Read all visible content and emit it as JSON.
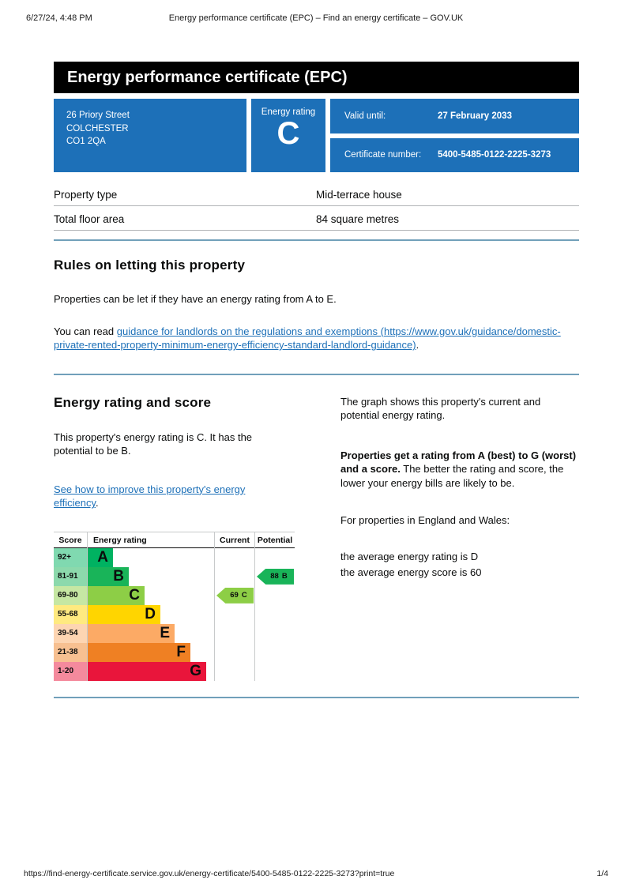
{
  "print_header": {
    "datetime": "6/27/24, 4:48 PM",
    "title": "Energy performance certificate (EPC) – Find an energy certificate – GOV.UK"
  },
  "print_footer": {
    "url": "https://find-energy-certificate.service.gov.uk/energy-certificate/5400-5485-0122-2225-3273?print=true",
    "page": "1/4"
  },
  "banner": {
    "title": "Energy performance certificate (EPC)"
  },
  "summary": {
    "address_lines": [
      "26 Priory Street",
      "COLCHESTER",
      "CO1 2QA"
    ],
    "rating_label": "Energy rating",
    "rating_value": "C",
    "valid_until_label": "Valid until:",
    "valid_until_value": "27 February 2033",
    "certificate_number_label": "Certificate number:",
    "certificate_number_value": "5400-5485-0122-2225-3273"
  },
  "property_facts": {
    "rows": [
      {
        "label": "Property type",
        "value": "Mid-terrace house"
      },
      {
        "label": "Total floor area",
        "value": "84 square metres"
      }
    ]
  },
  "rules_section": {
    "heading": "Rules on letting this property",
    "para1": "Properties can be let if they have an energy rating from A to E.",
    "para2_prefix": "You can read ",
    "para2_link": "guidance for landlords on the regulations and exemptions (https://www.gov.uk/guidance/domestic-private-rented-property-minimum-energy-efficiency-standard-landlord-guidance)",
    "para2_suffix": "."
  },
  "rating_section": {
    "heading": "Energy rating and score",
    "para1": "This property's energy rating is C. It has the potential to be B.",
    "link": "See how to improve this property's energy efficiency",
    "link_suffix": ".",
    "right_para1": "The graph shows this property's current and potential energy rating.",
    "right_para2_bold": "Properties get a rating from A (best) to G (worst) and a score.",
    "right_para2_rest": " The better the rating and score, the lower your energy bills are likely to be.",
    "right_para3": "For properties in England and Wales:",
    "right_list": [
      "the average energy rating is D",
      "the average energy score is 60"
    ]
  },
  "chart_data": {
    "type": "epc-rating-bands",
    "headers": {
      "score": "Score",
      "rating": "Energy rating",
      "current": "Current",
      "potential": "Potential"
    },
    "bands": [
      {
        "score": "92+",
        "letter": "A",
        "color": "#00b261",
        "tint": "#80d9b0",
        "width_pct": 20
      },
      {
        "score": "81-91",
        "letter": "B",
        "color": "#19b459",
        "tint": "#8cd9ac",
        "width_pct": 32.5
      },
      {
        "score": "69-80",
        "letter": "C",
        "color": "#8dce46",
        "tint": "#c6e7a3",
        "width_pct": 45
      },
      {
        "score": "55-68",
        "letter": "D",
        "color": "#ffd500",
        "tint": "#ffea80",
        "width_pct": 57.5
      },
      {
        "score": "39-54",
        "letter": "E",
        "color": "#fcaa65",
        "tint": "#fdd5b2",
        "width_pct": 68.75
      },
      {
        "score": "21-38",
        "letter": "F",
        "color": "#ef8023",
        "tint": "#f7c091",
        "width_pct": 81.25
      },
      {
        "score": "1-20",
        "letter": "G",
        "color": "#e9153b",
        "tint": "#f48a9d",
        "width_pct": 93.75
      }
    ],
    "current": {
      "score": "69",
      "band": "C",
      "color": "#8dce46"
    },
    "potential": {
      "score": "88",
      "band": "B",
      "color": "#19b459"
    }
  },
  "colors": {
    "govuk_blue": "#1d70b8",
    "banner_black": "#000000",
    "divider_blue": "#71a0ba",
    "table_line_grey": "#b1b4b6"
  }
}
